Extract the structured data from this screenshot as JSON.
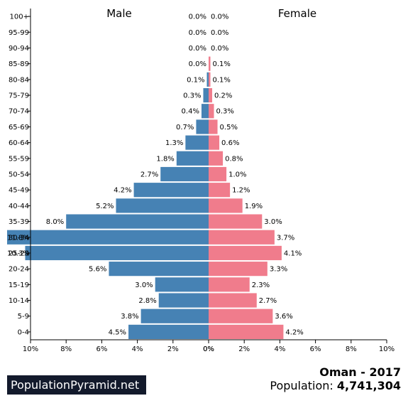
{
  "footer": {
    "brand": "PopulationPyramid.net",
    "country_year": "Oman - 2017",
    "population_label": "Population:",
    "population_value": "4,741,304"
  },
  "colors": {
    "male": "#4682b4",
    "female": "#f07c8c",
    "axis": "#000000",
    "brand_bg": "#131a2c"
  },
  "chart_data": {
    "type": "bar",
    "orientation": "horizontal-pyramid",
    "categories": [
      "100+",
      "95-99",
      "90-94",
      "85-89",
      "80-84",
      "75-79",
      "70-74",
      "65-69",
      "60-64",
      "55-59",
      "50-54",
      "45-49",
      "40-44",
      "35-39",
      "30-34",
      "25-29",
      "20-24",
      "15-19",
      "10-14",
      "5-9",
      "0-4"
    ],
    "series": [
      {
        "name": "Male",
        "values": [
          0.0,
          0.0,
          0.0,
          0.0,
          0.1,
          0.3,
          0.4,
          0.7,
          1.3,
          1.8,
          2.7,
          4.2,
          5.2,
          8.0,
          11.8,
          10.3,
          5.6,
          3.0,
          2.8,
          3.8,
          4.5
        ],
        "labels": [
          "0.0%",
          "0.0%",
          "0.0%",
          "0.0%",
          "0.1%",
          "0.3%",
          "0.4%",
          "0.7%",
          "1.3%",
          "1.8%",
          "2.7%",
          "4.2%",
          "5.2%",
          "8.0%",
          "11.8%",
          "10.3%",
          "5.6%",
          "3.0%",
          "2.8%",
          "3.8%",
          "4.5%"
        ]
      },
      {
        "name": "Female",
        "values": [
          0.0,
          0.0,
          0.0,
          0.1,
          0.1,
          0.2,
          0.3,
          0.5,
          0.6,
          0.8,
          1.0,
          1.2,
          1.9,
          3.0,
          3.7,
          4.1,
          3.3,
          2.3,
          2.7,
          3.6,
          4.2
        ],
        "labels": [
          "0.0%",
          "0.0%",
          "0.0%",
          "0.1%",
          "0.1%",
          "0.2%",
          "0.3%",
          "0.5%",
          "0.6%",
          "0.8%",
          "1.0%",
          "1.2%",
          "1.9%",
          "3.0%",
          "3.7%",
          "4.1%",
          "3.3%",
          "2.3%",
          "2.7%",
          "3.6%",
          "4.2%"
        ]
      }
    ],
    "xlim": [
      0,
      10
    ],
    "x_ticks": [
      10,
      8,
      6,
      4,
      2,
      0
    ],
    "x_tick_labels_left": [
      "10%",
      "8%",
      "6%",
      "4%",
      "2%",
      "0%"
    ],
    "x_tick_labels_right": [
      "0%",
      "2%",
      "4%",
      "6%",
      "8%",
      "10%"
    ],
    "grid": false
  }
}
